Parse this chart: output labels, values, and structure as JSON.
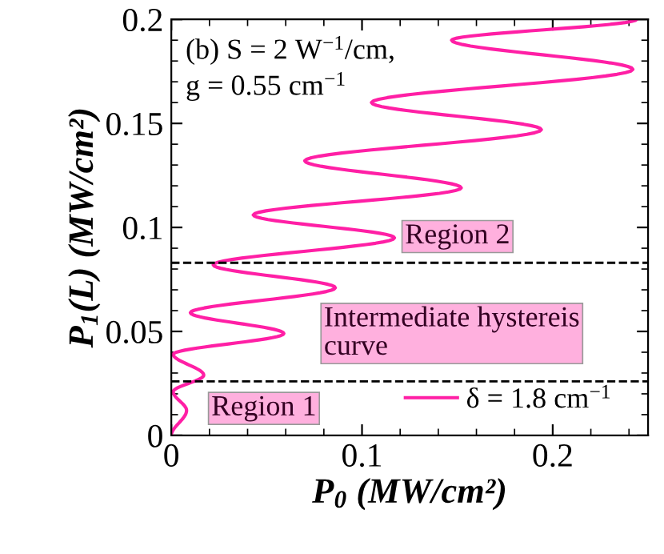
{
  "chart_data": {
    "type": "line",
    "xlabel": "P$_{0}$ (MW/cm²)",
    "ylabel": "P$_{1}$(L) (MW/cm²)",
    "series": [
      {
        "name": "δ = 1.8 cm$^{−1}$",
        "color": "#ff1fa5",
        "x": [
          0,
          0.008,
          0.001,
          0.017,
          0.001,
          0.059,
          0.01,
          0.086,
          0.022,
          0.117,
          0.043,
          0.152,
          0.07,
          0.194,
          0.105,
          0.242,
          0.147,
          0.244
        ],
        "values": [
          0,
          0.012,
          0.021,
          0.029,
          0.039,
          0.049,
          0.059,
          0.071,
          0.082,
          0.095,
          0.106,
          0.119,
          0.132,
          0.147,
          0.16,
          0.176,
          0.19,
          0.2
        ]
      }
    ],
    "xlim": [
      0,
      0.25
    ],
    "ylim": [
      0,
      0.2
    ],
    "xticks": [
      0,
      0.1,
      0.2
    ],
    "yticks": [
      0,
      0.05,
      0.1,
      0.15,
      0.2
    ],
    "ref_lines": [
      {
        "axis": "y",
        "value": 0.083,
        "label": null,
        "line_style": "dashed",
        "color": "#000000"
      },
      {
        "axis": "y",
        "value": 0.026,
        "label": null,
        "line_style": "dashed",
        "color": "#000000"
      }
    ],
    "annotations": [
      "(b) S = 2 W$^{−1}$/cm,\ng = 0.55 cm$^{−1}$",
      "Region 2",
      "Intermediate hystereis\ncurve",
      "Region 1"
    ],
    "legend": "bottom right",
    "grid": false,
    "marker": "none",
    "line_style": "solid"
  }
}
